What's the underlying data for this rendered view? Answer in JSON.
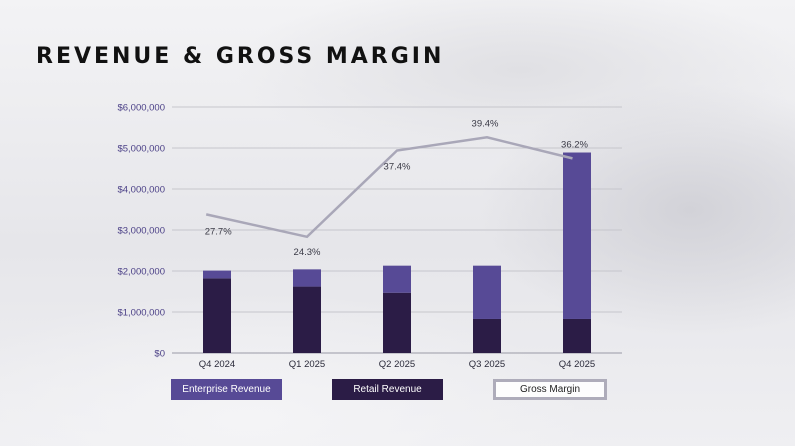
{
  "slide": {
    "title": "REVENUE & GROSS MARGIN"
  },
  "chart_data": {
    "type": "bar",
    "stacked": true,
    "title": "",
    "xlabel": "",
    "ylabel": "",
    "categories": [
      "Q4 2024",
      "Q1 2025",
      "Q2 2025",
      "Q3 2025",
      "Q4 2025"
    ],
    "ylim": [
      0,
      6000000
    ],
    "yticks": [
      0,
      1000000,
      2000000,
      3000000,
      4000000,
      5000000,
      6000000
    ],
    "ytick_labels": [
      "$0",
      "$1,000,000",
      "$2,000,000",
      "$3,000,000",
      "$4,000,000",
      "$5,000,000",
      "$6,000,000"
    ],
    "grid": true,
    "legend_position": "bottom",
    "series": [
      {
        "name": "Retail Revenue",
        "type": "bar",
        "color": "#2b1c46",
        "values": [
          1820000,
          1620000,
          1470000,
          830000,
          830000
        ]
      },
      {
        "name": "Enterprise Revenue",
        "type": "bar",
        "color": "#574a96",
        "values": [
          190000,
          420000,
          660000,
          1300000,
          4060000
        ]
      },
      {
        "name": "Gross Margin",
        "type": "line",
        "axis": "secondary",
        "color": "#a9a7b8",
        "values": [
          27.7,
          24.3,
          37.4,
          39.4,
          36.2
        ],
        "labels": [
          "27.7%",
          "24.3%",
          "37.4%",
          "39.4%",
          "36.2%"
        ]
      }
    ],
    "legend": [
      {
        "name": "Enterprise Revenue",
        "color": "#574a96"
      },
      {
        "name": "Retail Revenue",
        "color": "#2b1c46"
      },
      {
        "name": "Gross Margin",
        "color": "#aeacba"
      }
    ]
  }
}
